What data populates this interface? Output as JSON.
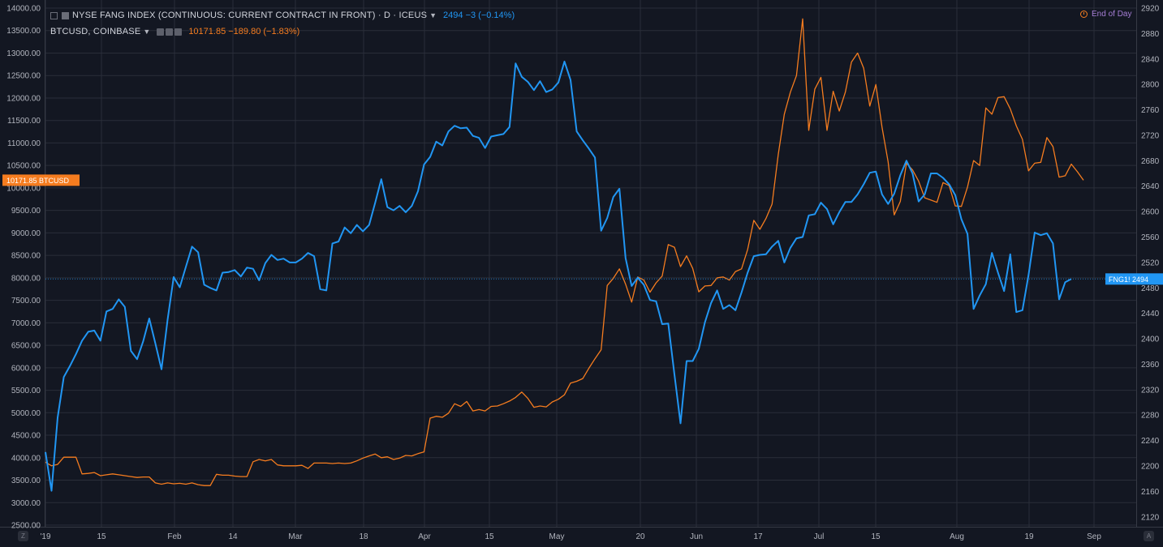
{
  "legend": {
    "main_title": "NYSE FANG INDEX (CONTINUOUS: CURRENT CONTRACT IN FRONT) · D · ICEUS",
    "main_values": "2494  −3 (−0.14%)",
    "secondary_title": "BTCUSD, COINBASE",
    "secondary_values": "10171.85  −189.80 (−1.83%)",
    "end_of_day": "End of Day"
  },
  "corners": {
    "left": "Z",
    "right": "A"
  },
  "colors": {
    "fang": "#2196f3",
    "btc": "#f57c1f",
    "background": "#131722",
    "grid": "#2a2e39",
    "axis_text": "#b2b5be"
  },
  "chart_data": {
    "type": "line",
    "x_ticks": [
      "'19",
      "15",
      "Feb",
      "14",
      "Mar",
      "18",
      "Apr",
      "15",
      "May",
      "20",
      "Jun",
      "17",
      "Jul",
      "15",
      "Aug",
      "19",
      "Sep"
    ],
    "left_axis": {
      "ylim": [
        2500,
        14000
      ],
      "ticks": [
        "2500.00",
        "3000.00",
        "3500.00",
        "4000.00",
        "4500.00",
        "5000.00",
        "5500.00",
        "6000.00",
        "6500.00",
        "7000.00",
        "7500.00",
        "8000.00",
        "8500.00",
        "9000.00",
        "9500.00",
        "10000.00",
        "10500.00",
        "11000.00",
        "11500.00",
        "12000.00",
        "12500.00",
        "13000.00",
        "13500.00",
        "14000.00"
      ]
    },
    "right_axis": {
      "ylim": [
        2107,
        2920
      ],
      "ticks": [
        "2120",
        "2160",
        "2200",
        "2240",
        "2280",
        "2320",
        "2360",
        "2400",
        "2440",
        "2480",
        "2520",
        "2560",
        "2600",
        "2640",
        "2680",
        "2720",
        "2760",
        "2800",
        "2840",
        "2880",
        "2920"
      ]
    },
    "grid": true,
    "price_labels": {
      "btc": {
        "value": 10171.85,
        "text": "10171.85",
        "name": "BTCUSD"
      },
      "fang": {
        "value": 2494,
        "text": "2494",
        "name": "FNG1!"
      }
    },
    "series": [
      {
        "name": "NYSE FANG INDEX",
        "axis": "right",
        "color": "#2196f3",
        "values": [
          2222,
          2161,
          2276,
          2340,
          2357,
          2376,
          2397,
          2411,
          2413,
          2397,
          2443,
          2447,
          2462,
          2450,
          2381,
          2368,
          2396,
          2432,
          2393,
          2352,
          2430,
          2497,
          2481,
          2513,
          2545,
          2536,
          2485,
          2480,
          2476,
          2504,
          2505,
          2508,
          2498,
          2512,
          2510,
          2492,
          2519,
          2532,
          2524,
          2526,
          2520,
          2520,
          2526,
          2535,
          2530,
          2478,
          2476,
          2550,
          2553,
          2575,
          2566,
          2579,
          2569,
          2579,
          2614,
          2651,
          2607,
          2602,
          2609,
          2599,
          2609,
          2632,
          2674,
          2686,
          2710,
          2704,
          2726,
          2735,
          2731,
          2732,
          2719,
          2716,
          2700,
          2718,
          2720,
          2722,
          2733,
          2833,
          2812,
          2804,
          2791,
          2805,
          2788,
          2792,
          2803,
          2836,
          2807,
          2726,
          2712,
          2699,
          2685,
          2570,
          2590,
          2623,
          2636,
          2527,
          2483,
          2496,
          2485,
          2461,
          2459,
          2423,
          2424,
          2344,
          2267,
          2365,
          2365,
          2384,
          2426,
          2456,
          2476,
          2447,
          2453,
          2445,
          2473,
          2504,
          2530,
          2532,
          2533,
          2545,
          2554,
          2520,
          2543,
          2558,
          2560,
          2594,
          2596,
          2614,
          2604,
          2580,
          2599,
          2615,
          2615,
          2627,
          2643,
          2661,
          2663,
          2627,
          2612,
          2628,
          2657,
          2680,
          2660,
          2616,
          2627,
          2660,
          2660,
          2653,
          2643,
          2626,
          2588,
          2565,
          2447,
          2468,
          2486,
          2535,
          2504,
          2475,
          2533,
          2442,
          2445,
          2500,
          2567,
          2563,
          2566,
          2550,
          2462,
          2489,
          2494
        ]
      },
      {
        "name": "BTCUSD",
        "axis": "left",
        "color": "#f57c1f",
        "values": [
          3900,
          3820,
          3850,
          4010,
          4010,
          4010,
          3640,
          3650,
          3670,
          3600,
          3620,
          3640,
          3620,
          3600,
          3580,
          3560,
          3570,
          3570,
          3440,
          3410,
          3440,
          3420,
          3430,
          3410,
          3440,
          3400,
          3380,
          3380,
          3630,
          3610,
          3610,
          3590,
          3580,
          3580,
          3910,
          3960,
          3930,
          3960,
          3840,
          3820,
          3820,
          3820,
          3830,
          3760,
          3880,
          3880,
          3880,
          3870,
          3880,
          3870,
          3880,
          3930,
          3990,
          4040,
          4080,
          4000,
          4020,
          3960,
          3990,
          4050,
          4040,
          4090,
          4130,
          4880,
          4920,
          4900,
          4990,
          5200,
          5140,
          5250,
          5040,
          5070,
          5040,
          5140,
          5150,
          5200,
          5260,
          5340,
          5460,
          5320,
          5120,
          5150,
          5130,
          5240,
          5300,
          5400,
          5660,
          5700,
          5760,
          5990,
          6200,
          6400,
          7830,
          7990,
          8200,
          7860,
          7460,
          8020,
          7950,
          7680,
          7890,
          8040,
          8740,
          8680,
          8250,
          8490,
          8210,
          7690,
          7820,
          7830,
          8000,
          8020,
          7950,
          8140,
          8200,
          8630,
          9280,
          9080,
          9320,
          9640,
          10740,
          11640,
          12130,
          12500,
          13760,
          11280,
          12200,
          12460,
          11280,
          12150,
          11710,
          12130,
          12800,
          13000,
          12660,
          11820,
          12300,
          11350,
          10580,
          9400,
          9700,
          10550,
          10400,
          10150,
          9780,
          9730,
          9680,
          10120,
          10050,
          9600,
          9590,
          10020,
          10610,
          10500,
          11780,
          11640,
          12010,
          12030,
          11760,
          11380,
          11080,
          10380,
          10550,
          10570,
          11120,
          10920,
          10240,
          10270,
          10530,
          10360,
          10171.85
        ]
      }
    ]
  }
}
